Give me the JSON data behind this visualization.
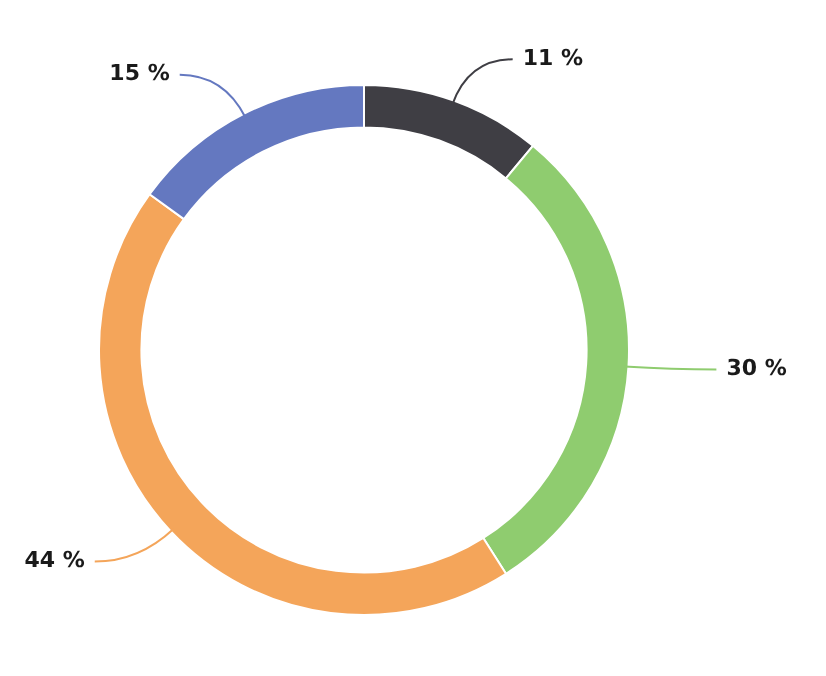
{
  "chart_data": {
    "type": "donut",
    "categories": [
      null,
      null,
      null,
      null
    ],
    "values": [
      11,
      30,
      44,
      15
    ],
    "colors": [
      "#3f3e44",
      "#8fcc6f",
      "#f4a55a",
      "#6478c0"
    ],
    "value_labels": [
      "11 %",
      "30 %",
      "44 %",
      "15 %"
    ],
    "legend": false
  }
}
